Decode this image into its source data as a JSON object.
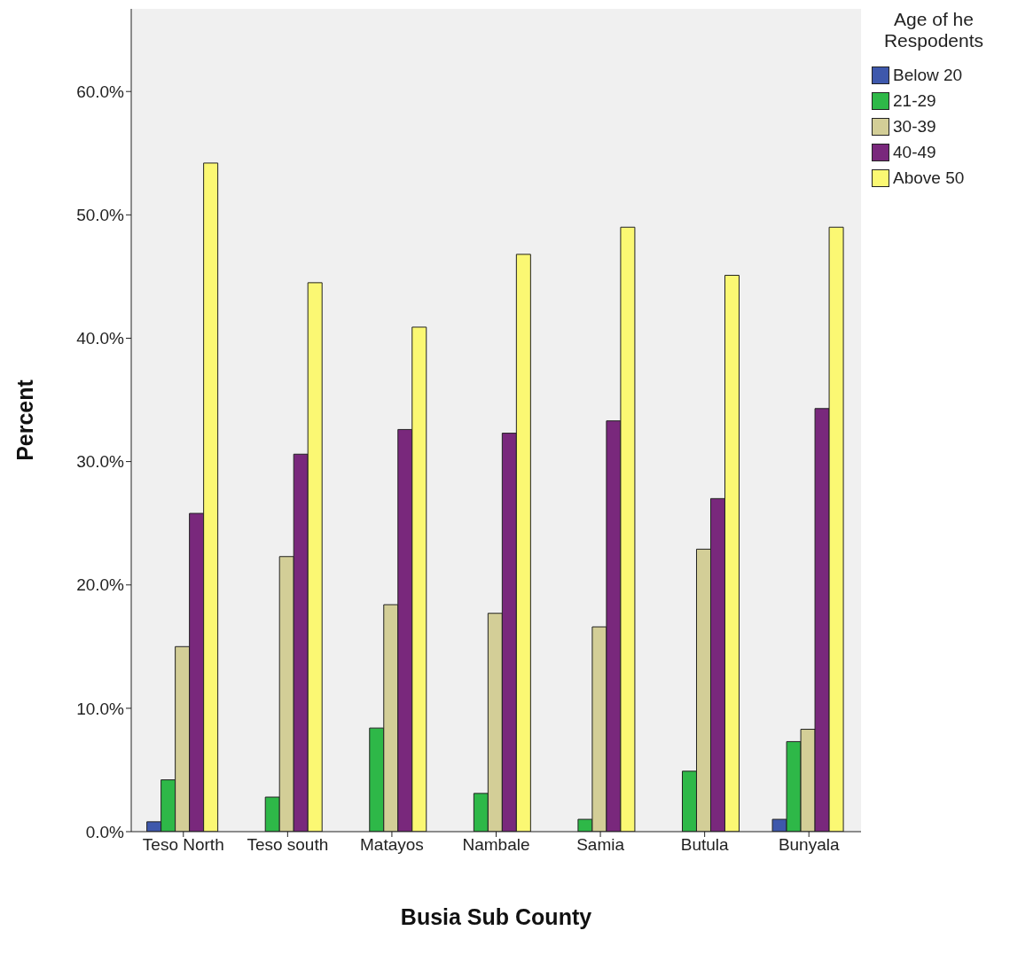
{
  "chart_data": {
    "type": "bar",
    "xlabel": "Busia Sub County",
    "ylabel": "Percent",
    "legend_title": "Age of he Respodents",
    "categories": [
      "Teso North",
      "Teso south",
      "Matayos",
      "Nambale",
      "Samia",
      "Butula",
      "Bunyala"
    ],
    "series": [
      {
        "name": "Below 20",
        "color": "#3e58ac",
        "values": [
          0.8,
          null,
          null,
          null,
          null,
          null,
          1.0
        ]
      },
      {
        "name": "21-29",
        "color": "#2eb848",
        "values": [
          4.2,
          2.8,
          8.4,
          3.1,
          1.0,
          4.9,
          7.3
        ]
      },
      {
        "name": "30-39",
        "color": "#d3ce97",
        "values": [
          15.0,
          22.3,
          18.4,
          17.7,
          16.6,
          22.9,
          8.3
        ]
      },
      {
        "name": "40-49",
        "color": "#79287c",
        "values": [
          25.8,
          30.6,
          32.6,
          32.3,
          33.3,
          27.0,
          34.3
        ]
      },
      {
        "name": "Above 50",
        "color": "#fbf873",
        "values": [
          54.2,
          44.5,
          40.9,
          46.8,
          49.0,
          45.1,
          49.0
        ]
      }
    ],
    "ylim": [
      0,
      66.7
    ],
    "yticks": [
      {
        "value": 0,
        "label": "0.0%"
      },
      {
        "value": 10,
        "label": "10.0%"
      },
      {
        "value": 20,
        "label": "20.0%"
      },
      {
        "value": 30,
        "label": "30.0%"
      },
      {
        "value": 40,
        "label": "40.0%"
      },
      {
        "value": 50,
        "label": "50.0%"
      },
      {
        "value": 60,
        "label": "60.0%"
      }
    ],
    "grid": false,
    "legend": "top right"
  }
}
